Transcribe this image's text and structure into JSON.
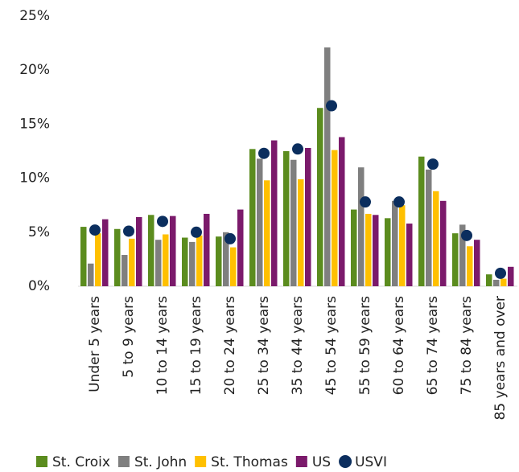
{
  "chart_data": {
    "type": "bar",
    "categories": [
      "Under 5 years",
      "5 to 9 years",
      "10 to 14 years",
      "15 to 19 years",
      "20 to 24 years",
      "25 to 34 years",
      "35 to 44 years",
      "45 to 54 years",
      "55 to 59 years",
      "60 to 64 years",
      "65 to 74 years",
      "75 to 84 years",
      "85 years and over"
    ],
    "series": [
      {
        "name": "St. Croix",
        "color": "#5b8c1e",
        "values": [
          5.5,
          5.3,
          6.6,
          4.5,
          4.6,
          12.7,
          12.5,
          16.5,
          7.1,
          6.3,
          12.0,
          4.9,
          1.1
        ]
      },
      {
        "name": "St. John",
        "color": "#7f7f7f",
        "values": [
          2.1,
          2.9,
          4.3,
          4.1,
          5.0,
          11.8,
          11.7,
          22.1,
          11.0,
          7.9,
          10.8,
          5.7,
          0.6
        ]
      },
      {
        "name": "St. Thomas",
        "color": "#ffc000",
        "values": [
          4.9,
          4.4,
          4.8,
          4.7,
          3.6,
          9.8,
          9.9,
          12.6,
          6.7,
          7.5,
          8.8,
          3.7,
          0.7
        ]
      },
      {
        "name": "US",
        "color": "#7b1a6b",
        "values": [
          6.2,
          6.4,
          6.5,
          6.7,
          7.1,
          13.5,
          12.8,
          13.8,
          6.6,
          5.8,
          7.9,
          4.3,
          1.8
        ]
      },
      {
        "name": "USVI",
        "color": "#0b2e5e",
        "style": "marker",
        "values": [
          5.2,
          5.1,
          6.0,
          5.0,
          4.4,
          12.3,
          12.7,
          16.7,
          7.8,
          7.8,
          11.3,
          4.7,
          1.2
        ]
      }
    ],
    "ylim": [
      0,
      25
    ],
    "yticks": [
      {
        "value": 0,
        "label": "0%"
      },
      {
        "value": 5,
        "label": "5%"
      },
      {
        "value": 10,
        "label": "10%"
      },
      {
        "value": 15,
        "label": "15%"
      },
      {
        "value": 20,
        "label": "20%"
      },
      {
        "value": 25,
        "label": "25%"
      }
    ],
    "grid": false,
    "legend": "bottom"
  }
}
